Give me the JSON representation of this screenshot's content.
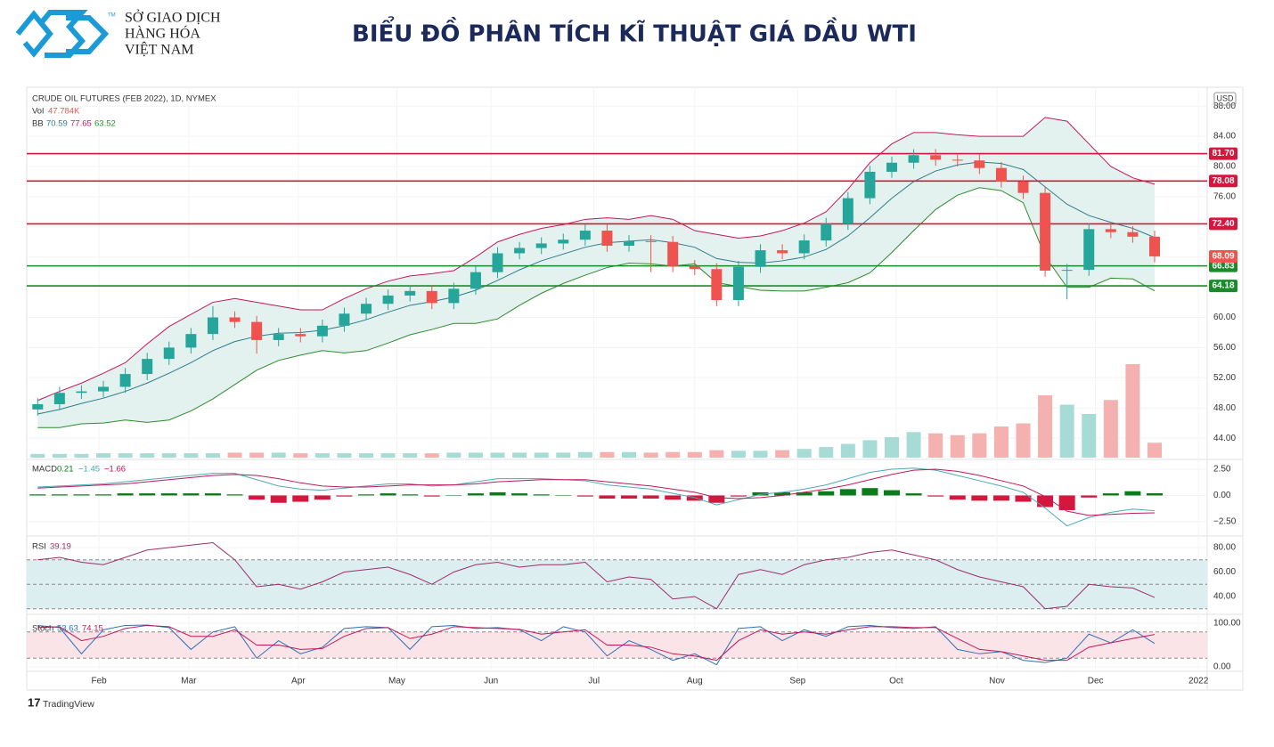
{
  "header": {
    "brand": [
      "SỞ GIAO DỊCH",
      "HÀNG HÓA",
      "VIỆT NAM"
    ],
    "tm": "TM"
  },
  "footer": "TradingView",
  "chart_data": {
    "type": "candlestick",
    "title": "BIỂU ĐỒ PHÂN TÍCH KĨ THUẬT GIÁ DẦU WTI",
    "instrument": "CRUDE OIL FUTURES (FEB 2022), 1D, NYMEX",
    "currency": "USD",
    "xlim": [
      -0.5,
      53.4
    ],
    "xticks": [
      {
        "value": 2.8,
        "label": "Feb"
      },
      {
        "value": 6.9,
        "label": "Mar"
      },
      {
        "value": 11.9,
        "label": "Apr"
      },
      {
        "value": 16.4,
        "label": "May"
      },
      {
        "value": 20.7,
        "label": "Jun"
      },
      {
        "value": 25.4,
        "label": "Jul"
      },
      {
        "value": 30.0,
        "label": "Aug"
      },
      {
        "value": 34.7,
        "label": "Sep"
      },
      {
        "value": 39.2,
        "label": "Oct"
      },
      {
        "value": 43.8,
        "label": "Nov"
      },
      {
        "value": 48.3,
        "label": "Dec"
      },
      {
        "value": 53.0,
        "label": "2022"
      }
    ],
    "ylim": [
      41.3,
      90.5
    ],
    "yticks": [
      {
        "value": 44,
        "label": "44.00"
      },
      {
        "value": 48,
        "label": "48.00"
      },
      {
        "value": 52,
        "label": "52.00"
      },
      {
        "value": 56,
        "label": "56.00"
      },
      {
        "value": 60,
        "label": "60.00"
      },
      {
        "value": 64,
        "label": "64.00"
      },
      {
        "value": 68,
        "label": "68.00"
      },
      {
        "value": 72,
        "label": "72.00"
      },
      {
        "value": 76,
        "label": "76.00"
      },
      {
        "value": 80,
        "label": "80.00"
      },
      {
        "value": 84,
        "label": "84.00"
      },
      {
        "value": 88,
        "label": "88.00"
      }
    ],
    "up_color": "#26a69a",
    "down_color": "#ef5350",
    "ohlc": [
      [
        47.8,
        49.3,
        47.0,
        48.5
      ],
      [
        48.5,
        50.8,
        47.7,
        50.0
      ],
      [
        50.0,
        51.0,
        49.2,
        50.2
      ],
      [
        50.2,
        51.6,
        49.4,
        50.8
      ],
      [
        50.8,
        53.3,
        50.0,
        52.5
      ],
      [
        52.5,
        55.3,
        51.7,
        54.5
      ],
      [
        54.5,
        56.8,
        53.7,
        56.0
      ],
      [
        56.0,
        58.6,
        55.2,
        57.8
      ],
      [
        57.8,
        61.5,
        57.0,
        60.0
      ],
      [
        60.0,
        60.8,
        58.6,
        59.4
      ],
      [
        59.4,
        60.2,
        55.2,
        57.0
      ],
      [
        57.0,
        58.6,
        56.2,
        57.8
      ],
      [
        57.8,
        58.6,
        56.7,
        57.5
      ],
      [
        57.5,
        59.7,
        56.7,
        58.9
      ],
      [
        58.9,
        61.3,
        58.1,
        60.5
      ],
      [
        60.5,
        62.6,
        59.7,
        61.8
      ],
      [
        61.8,
        63.7,
        61.0,
        62.9
      ],
      [
        62.9,
        64.3,
        62.1,
        63.5
      ],
      [
        63.5,
        64.3,
        61.1,
        61.9
      ],
      [
        61.9,
        64.6,
        61.1,
        63.8
      ],
      [
        63.8,
        66.8,
        63.0,
        66.0
      ],
      [
        66.0,
        69.3,
        65.2,
        68.5
      ],
      [
        68.5,
        70.0,
        67.7,
        69.2
      ],
      [
        69.2,
        70.6,
        68.4,
        69.8
      ],
      [
        69.8,
        71.1,
        69.0,
        70.3
      ],
      [
        70.3,
        72.3,
        69.5,
        71.5
      ],
      [
        71.5,
        72.3,
        68.7,
        69.5
      ],
      [
        69.5,
        70.9,
        68.7,
        70.1
      ],
      [
        70.1,
        70.9,
        66.0,
        70.0
      ],
      [
        70.0,
        70.8,
        66.0,
        66.8
      ],
      [
        66.8,
        67.6,
        65.6,
        66.4
      ],
      [
        66.4,
        67.2,
        61.5,
        62.3
      ],
      [
        62.3,
        67.5,
        61.5,
        66.7
      ],
      [
        66.7,
        69.7,
        65.9,
        68.9
      ],
      [
        68.9,
        69.7,
        67.7,
        68.5
      ],
      [
        68.5,
        71.0,
        67.7,
        70.2
      ],
      [
        70.2,
        73.2,
        69.4,
        72.4
      ],
      [
        72.4,
        76.6,
        71.6,
        75.8
      ],
      [
        75.8,
        80.1,
        75.0,
        79.3
      ],
      [
        79.3,
        81.3,
        78.5,
        80.5
      ],
      [
        80.5,
        82.3,
        79.7,
        81.5
      ],
      [
        81.5,
        82.3,
        80.1,
        80.9
      ],
      [
        80.9,
        81.7,
        80.0,
        80.8
      ],
      [
        80.8,
        81.6,
        79.0,
        79.8
      ],
      [
        79.8,
        80.6,
        77.2,
        78.0
      ],
      [
        78.0,
        78.8,
        75.7,
        76.5
      ],
      [
        76.5,
        77.3,
        65.4,
        66.2
      ],
      [
        66.2,
        67.1,
        62.4,
        66.3
      ],
      [
        66.3,
        72.5,
        65.5,
        71.7
      ],
      [
        71.7,
        72.5,
        70.5,
        71.3
      ],
      [
        71.3,
        72.1,
        69.9,
        70.7
      ],
      [
        70.7,
        71.5,
        67.3,
        68.09
      ]
    ],
    "volume": {
      "name": "Vol",
      "label": "47.784K",
      "up_color": "#a6dbd6",
      "down_color": "#f5b0b0",
      "values": [
        12,
        12,
        12,
        14,
        14,
        14,
        14,
        14,
        14,
        16,
        16,
        16,
        14,
        14,
        14,
        14,
        14,
        14,
        14,
        16,
        16,
        16,
        16,
        16,
        16,
        18,
        18,
        18,
        16,
        18,
        18,
        24,
        22,
        22,
        24,
        28,
        34,
        44,
        56,
        66,
        82,
        78,
        72,
        78,
        100,
        110,
        200,
        170,
        140,
        185,
        300,
        47.784
      ]
    },
    "bb": {
      "name": "BB",
      "labels": [
        "70.59",
        "77.65",
        "63.52"
      ],
      "fill": "#e3f1ef",
      "basis": {
        "color": "#2e7d8c",
        "values": [
          47.2,
          47.8,
          48.6,
          49.3,
          50.2,
          51.3,
          52.6,
          54.0,
          55.6,
          56.8,
          57.5,
          57.9,
          58.0,
          58.3,
          58.9,
          59.7,
          60.7,
          61.6,
          62.1,
          62.7,
          63.6,
          64.9,
          66.3,
          67.5,
          68.4,
          69.3,
          69.9,
          70.1,
          70.3,
          69.9,
          69.3,
          67.8,
          67.3,
          67.2,
          67.5,
          68.0,
          69.0,
          70.8,
          73.2,
          75.8,
          78.0,
          79.4,
          80.2,
          80.6,
          80.4,
          79.6,
          77.3,
          75.0,
          73.5,
          72.6,
          71.8,
          70.59
        ]
      },
      "upper": {
        "color": "#c2185b",
        "values": [
          49.0,
          50.2,
          51.3,
          52.6,
          54.0,
          56.5,
          58.8,
          60.4,
          62.0,
          62.5,
          62.0,
          61.5,
          61.0,
          61.0,
          62.5,
          63.8,
          64.8,
          65.5,
          65.8,
          66.2,
          68.0,
          70.0,
          71.0,
          71.8,
          72.3,
          73.0,
          73.2,
          73.0,
          73.5,
          73.0,
          71.5,
          71.0,
          70.5,
          70.8,
          71.5,
          72.5,
          74.0,
          77.0,
          80.5,
          83.0,
          84.5,
          84.5,
          84.2,
          84.0,
          84.0,
          84.0,
          86.5,
          86.0,
          83.0,
          80.0,
          78.5,
          77.65
        ]
      },
      "lower": {
        "color": "#2e8b2e",
        "values": [
          45.4,
          45.4,
          45.9,
          46.0,
          46.4,
          46.1,
          46.4,
          47.6,
          49.2,
          51.1,
          53.0,
          54.3,
          55.0,
          55.6,
          55.3,
          55.6,
          56.6,
          57.7,
          58.4,
          59.2,
          59.2,
          59.8,
          61.6,
          63.2,
          64.5,
          65.6,
          66.6,
          67.2,
          67.1,
          66.8,
          67.1,
          64.6,
          64.1,
          63.6,
          63.5,
          63.5,
          64.0,
          64.6,
          65.9,
          68.6,
          71.5,
          74.3,
          76.2,
          77.2,
          76.8,
          75.2,
          68.1,
          64.0,
          64.0,
          65.2,
          65.1,
          63.52
        ]
      }
    },
    "levels": [
      {
        "value": 81.7,
        "label": "81.70",
        "color": "#d5163d"
      },
      {
        "value": 78.08,
        "label": "78.08",
        "color": "#d5163d"
      },
      {
        "value": 72.4,
        "label": "72.40",
        "color": "#d5163d"
      },
      {
        "value": 66.83,
        "label": "66.83",
        "color": "#1b8a2a"
      },
      {
        "value": 64.18,
        "label": "64.18",
        "color": "#1b8a2a"
      }
    ],
    "last_price": {
      "value": 68.09,
      "label": "68.09",
      "color": "#ef5350"
    },
    "macd": {
      "name": "MACD",
      "labels": [
        "0.21",
        "−1.45",
        "−1.66"
      ],
      "ylim": [
        -3.69,
        3.26
      ],
      "yticks": [
        {
          "value": 2.5,
          "label": "2.50"
        },
        {
          "value": 0,
          "label": "0.00"
        },
        {
          "value": -2.5,
          "label": "−2.50"
        }
      ],
      "macd": {
        "color": "#4fa8b8",
        "values": [
          0.8,
          0.9,
          1.0,
          1.1,
          1.3,
          1.5,
          1.7,
          1.9,
          2.1,
          2.1,
          1.5,
          0.9,
          0.6,
          0.5,
          0.7,
          0.9,
          1.1,
          1.1,
          0.9,
          1.0,
          1.3,
          1.6,
          1.6,
          1.6,
          1.5,
          1.4,
          1.0,
          0.8,
          0.6,
          0.2,
          -0.2,
          -0.9,
          -0.4,
          0.1,
          0.3,
          0.6,
          1.0,
          1.6,
          2.2,
          2.5,
          2.6,
          2.4,
          1.9,
          1.4,
          0.9,
          0.3,
          -1.2,
          -2.9,
          -2.1,
          -1.6,
          -1.3,
          -1.45
        ]
      },
      "signal": {
        "color": "#c2185b",
        "values": [
          0.7,
          0.8,
          0.9,
          1.0,
          1.1,
          1.3,
          1.5,
          1.7,
          1.9,
          2.0,
          1.9,
          1.6,
          1.2,
          0.9,
          0.8,
          0.8,
          0.9,
          1.0,
          1.0,
          1.0,
          1.1,
          1.3,
          1.4,
          1.5,
          1.5,
          1.5,
          1.3,
          1.1,
          0.9,
          0.6,
          0.3,
          -0.2,
          -0.3,
          -0.2,
          0.0,
          0.3,
          0.6,
          1.0,
          1.5,
          2.0,
          2.4,
          2.5,
          2.3,
          1.9,
          1.4,
          0.9,
          -0.1,
          -1.5,
          -1.9,
          -1.8,
          -1.7,
          -1.66
        ]
      },
      "histogram": {
        "up_color": "#0a7a1a",
        "down_color": "#d5163d",
        "values": [
          0.1,
          0.1,
          0.1,
          0.1,
          0.2,
          0.2,
          0.2,
          0.2,
          0.2,
          0.1,
          -0.4,
          -0.7,
          -0.6,
          -0.4,
          -0.1,
          0.1,
          0.2,
          0.1,
          -0.1,
          0,
          0.2,
          0.3,
          0.2,
          0.1,
          0,
          -0.1,
          -0.3,
          -0.3,
          -0.3,
          -0.4,
          -0.5,
          -0.7,
          -0.1,
          0.3,
          0.3,
          0.3,
          0.4,
          0.6,
          0.7,
          0.5,
          0.2,
          -0.1,
          -0.4,
          -0.5,
          -0.5,
          -0.6,
          -1.1,
          -1.4,
          -0.2,
          0.2,
          0.4,
          0.21
        ]
      }
    },
    "rsi": {
      "name": "RSI",
      "label": "39.19",
      "color": "#9c2f6a",
      "band_color": "#dceef0",
      "ylim": [
        26.9,
        88
      ],
      "yticks": [
        {
          "value": 80,
          "label": "80.00"
        },
        {
          "value": 60,
          "label": "60.00"
        },
        {
          "value": 40,
          "label": "40.00"
        }
      ],
      "bands": [
        70,
        50,
        30
      ],
      "values": [
        70,
        72,
        68,
        66,
        72,
        78,
        80,
        82,
        84,
        70,
        48,
        50,
        46,
        52,
        60,
        62,
        64,
        58,
        50,
        60,
        66,
        68,
        64,
        66,
        66,
        68,
        52,
        56,
        54,
        38,
        40,
        30,
        58,
        62,
        58,
        66,
        70,
        72,
        76,
        78,
        74,
        70,
        62,
        56,
        52,
        48,
        30,
        32,
        50,
        48,
        47,
        39.19
      ]
    },
    "stoch": {
      "name": "Stoch",
      "labels": [
        "53.63",
        "74.15"
      ],
      "band_color": "#fbe4e8",
      "ylim": [
        -6.1,
        116.3
      ],
      "yticks": [
        {
          "value": 100,
          "label": "100.00"
        },
        {
          "value": 0,
          "label": "0.00"
        }
      ],
      "bands": [
        80,
        20
      ],
      "k": {
        "color": "#2f6fb5",
        "values": [
          95,
          90,
          30,
          85,
          95,
          96,
          90,
          40,
          80,
          92,
          20,
          60,
          30,
          45,
          88,
          92,
          90,
          40,
          92,
          95,
          88,
          90,
          85,
          60,
          92,
          80,
          25,
          60,
          40,
          15,
          30,
          5,
          88,
          92,
          60,
          85,
          70,
          92,
          95,
          90,
          88,
          92,
          40,
          30,
          35,
          15,
          10,
          20,
          75,
          55,
          85,
          53.63
        ]
      },
      "d": {
        "color": "#c2185b",
        "values": [
          90,
          92,
          60,
          70,
          88,
          95,
          92,
          70,
          70,
          85,
          50,
          50,
          40,
          42,
          70,
          88,
          90,
          65,
          75,
          92,
          90,
          88,
          86,
          75,
          80,
          85,
          50,
          50,
          45,
          30,
          25,
          15,
          60,
          85,
          75,
          80,
          75,
          85,
          92,
          92,
          90,
          90,
          65,
          40,
          35,
          25,
          15,
          15,
          45,
          55,
          65,
          74.15
        ]
      }
    }
  }
}
